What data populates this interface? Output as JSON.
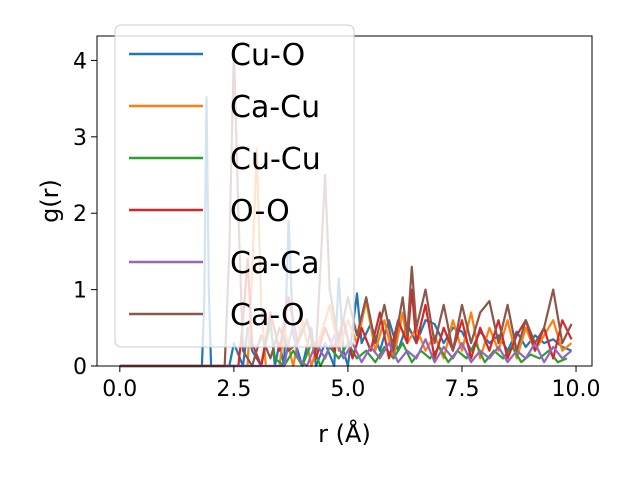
{
  "chart_data": {
    "type": "line",
    "title": "",
    "xlabel": "r (Å)",
    "ylabel": "g(r)",
    "xlim": [
      -0.5,
      10.35
    ],
    "ylim": [
      0,
      4.32
    ],
    "xticks": [
      0.0,
      2.5,
      5.0,
      7.5,
      10.0
    ],
    "xtick_labels": [
      "0.0",
      "2.5",
      "5.0",
      "7.5",
      "10.0"
    ],
    "yticks": [
      0,
      1,
      2,
      3,
      4
    ],
    "ytick_labels": [
      "0",
      "1",
      "2",
      "3",
      "4"
    ],
    "grid": false,
    "legend_position": "upper-left",
    "series": [
      {
        "name": "Cu-O",
        "color": "#1f77b4",
        "x": [
          0.0,
          1.8,
          1.85,
          1.9,
          1.95,
          2.0,
          2.1,
          2.4,
          2.5,
          2.7,
          2.8,
          2.9,
          3.1,
          3.3,
          3.4,
          3.5,
          3.6,
          3.7,
          3.8,
          4.0,
          4.2,
          4.3,
          4.5,
          4.7,
          4.8,
          4.9,
          5.0,
          5.2,
          5.3,
          5.5,
          5.7,
          5.9,
          6.1,
          6.3,
          6.5,
          6.7,
          6.9,
          7.1,
          7.3,
          7.5,
          7.7,
          7.9,
          8.1,
          8.3,
          8.5,
          8.7,
          8.9,
          9.1,
          9.3,
          9.5,
          9.7,
          9.9
        ],
        "y": [
          0.0,
          0.0,
          0.8,
          3.52,
          1.0,
          0.0,
          0.0,
          0.0,
          0.3,
          0.0,
          0.5,
          0.2,
          0.0,
          0.6,
          0.0,
          0.3,
          0.0,
          1.9,
          0.4,
          0.0,
          0.5,
          0.0,
          0.3,
          0.0,
          1.15,
          0.2,
          0.0,
          0.95,
          0.3,
          0.55,
          0.2,
          0.6,
          0.2,
          0.55,
          0.3,
          0.6,
          0.55,
          0.3,
          0.5,
          0.45,
          0.2,
          0.45,
          0.3,
          0.4,
          0.2,
          0.45,
          0.25,
          0.4,
          0.3,
          0.35,
          0.25,
          0.2
        ]
      },
      {
        "name": "Ca-Cu",
        "color": "#ff7f0e",
        "x": [
          0.0,
          2.8,
          2.9,
          3.0,
          3.1,
          3.2,
          3.5,
          3.6,
          3.8,
          4.0,
          4.2,
          4.4,
          4.6,
          4.8,
          5.0,
          5.2,
          5.4,
          5.6,
          5.8,
          6.0,
          6.2,
          6.3,
          6.5,
          6.7,
          6.9,
          7.1,
          7.3,
          7.5,
          7.7,
          7.9,
          8.1,
          8.3,
          8.5,
          8.7,
          8.9,
          9.1,
          9.3,
          9.5,
          9.7,
          9.9
        ],
        "y": [
          0.0,
          0.0,
          1.2,
          2.85,
          0.8,
          0.0,
          0.0,
          0.5,
          0.0,
          0.6,
          0.0,
          0.4,
          0.8,
          0.2,
          0.6,
          0.3,
          0.85,
          0.2,
          0.6,
          0.1,
          0.7,
          0.3,
          0.5,
          0.2,
          0.4,
          0.1,
          0.6,
          0.2,
          0.7,
          0.1,
          0.5,
          0.2,
          0.6,
          0.1,
          0.5,
          0.2,
          0.4,
          0.6,
          0.2,
          0.3
        ]
      },
      {
        "name": "Cu-Cu",
        "color": "#2ca02c",
        "x": [
          0.0,
          3.1,
          3.2,
          3.3,
          3.4,
          3.6,
          3.8,
          4.0,
          4.2,
          4.4,
          4.6,
          4.8,
          5.0,
          5.2,
          5.4,
          5.6,
          5.8,
          6.0,
          6.2,
          6.4,
          6.6,
          6.8,
          7.0,
          7.2,
          7.4,
          7.6,
          7.8,
          8.0,
          8.2,
          8.4,
          8.6,
          8.8,
          9.0,
          9.2,
          9.4,
          9.6,
          9.8
        ],
        "y": [
          0.0,
          0.0,
          0.3,
          0.55,
          0.1,
          0.0,
          0.2,
          0.0,
          0.3,
          0.0,
          0.25,
          0.1,
          0.3,
          0.1,
          0.2,
          0.05,
          0.25,
          0.1,
          0.3,
          0.05,
          0.2,
          0.1,
          0.25,
          0.05,
          0.2,
          0.1,
          0.3,
          0.05,
          0.2,
          0.1,
          0.25,
          0.05,
          0.15,
          0.1,
          0.2,
          0.05,
          0.1
        ]
      },
      {
        "name": "O-O",
        "color": "#d62728",
        "x": [
          0.0,
          2.6,
          2.7,
          2.8,
          2.9,
          3.1,
          3.3,
          3.5,
          3.7,
          3.9,
          4.1,
          4.3,
          4.5,
          4.7,
          4.9,
          5.1,
          5.3,
          5.5,
          5.7,
          5.9,
          6.1,
          6.3,
          6.4,
          6.5,
          6.7,
          6.9,
          7.1,
          7.3,
          7.5,
          7.7,
          7.9,
          8.1,
          8.3,
          8.5,
          8.7,
          8.9,
          9.1,
          9.3,
          9.5,
          9.7,
          9.9
        ],
        "y": [
          0.0,
          0.0,
          0.6,
          1.4,
          0.3,
          0.0,
          0.7,
          0.2,
          0.9,
          0.3,
          0.6,
          0.1,
          0.5,
          0.2,
          0.6,
          0.1,
          0.5,
          0.2,
          0.7,
          0.1,
          0.6,
          0.3,
          1.0,
          0.3,
          0.8,
          0.1,
          0.5,
          0.2,
          0.6,
          0.1,
          0.5,
          0.2,
          0.6,
          0.1,
          0.4,
          0.6,
          0.2,
          0.5,
          0.1,
          0.6,
          0.35
        ]
      },
      {
        "name": "Ca-Ca",
        "color": "#9467bd",
        "x": [
          0.0,
          3.6,
          3.7,
          3.8,
          3.9,
          4.1,
          4.3,
          4.5,
          4.7,
          4.9,
          5.1,
          5.3,
          5.5,
          5.7,
          5.9,
          6.1,
          6.3,
          6.5,
          6.7,
          6.9,
          7.1,
          7.3,
          7.5,
          7.7,
          7.9,
          8.1,
          8.3,
          8.5,
          8.7,
          8.9,
          9.1,
          9.3,
          9.5,
          9.7,
          9.9
        ],
        "y": [
          0.0,
          0.0,
          0.3,
          0.55,
          0.1,
          0.0,
          0.3,
          0.1,
          0.4,
          0.1,
          0.3,
          0.05,
          0.25,
          0.1,
          0.3,
          0.05,
          0.2,
          0.1,
          0.35,
          0.05,
          0.25,
          0.1,
          0.3,
          0.05,
          0.2,
          0.1,
          0.25,
          0.05,
          0.2,
          0.1,
          0.3,
          0.05,
          0.25,
          0.1,
          0.2
        ]
      },
      {
        "name": "Ca-O",
        "color": "#8c564b",
        "x": [
          0.0,
          2.3,
          2.4,
          2.5,
          2.6,
          2.7,
          2.9,
          3.1,
          3.3,
          3.5,
          3.7,
          3.9,
          4.1,
          4.3,
          4.4,
          4.5,
          4.6,
          4.8,
          5.0,
          5.2,
          5.4,
          5.6,
          5.8,
          6.0,
          6.2,
          6.3,
          6.4,
          6.5,
          6.7,
          6.9,
          7.1,
          7.3,
          7.5,
          7.7,
          7.9,
          8.1,
          8.3,
          8.5,
          8.7,
          8.9,
          9.1,
          9.3,
          9.5,
          9.7,
          9.9
        ],
        "y": [
          0.0,
          0.0,
          1.5,
          4.15,
          2.0,
          0.2,
          0.0,
          0.4,
          0.1,
          0.5,
          0.2,
          0.3,
          0.6,
          0.2,
          1.3,
          2.5,
          1.0,
          0.3,
          0.9,
          0.4,
          0.9,
          0.3,
          0.8,
          0.2,
          0.9,
          0.4,
          1.3,
          0.5,
          1.0,
          0.3,
          0.8,
          0.2,
          0.8,
          0.3,
          0.7,
          0.85,
          0.3,
          0.8,
          0.2,
          0.6,
          0.3,
          0.5,
          1.0,
          0.3,
          0.55
        ]
      }
    ]
  }
}
